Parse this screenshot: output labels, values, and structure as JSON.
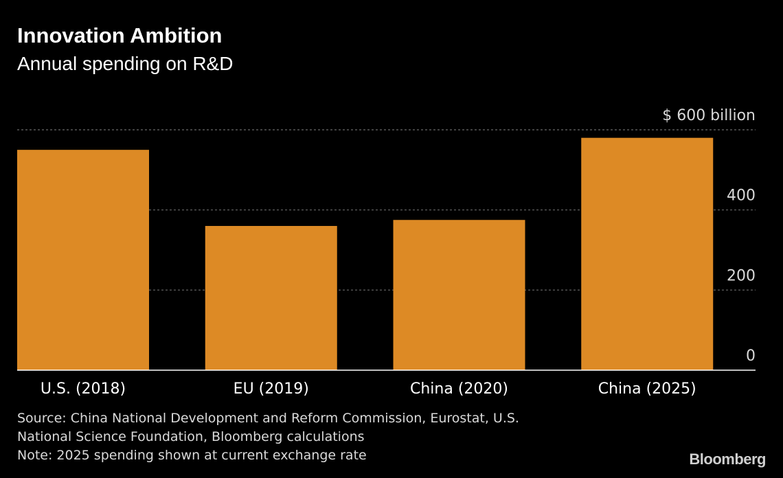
{
  "colors": {
    "background": "#000000",
    "bar": "#dd8a25",
    "grid": "#6a6a6a",
    "axis": "#ffffff",
    "text": "#ffffff",
    "muted_text": "#d9d9d9"
  },
  "chart_data": {
    "type": "bar",
    "title": "Innovation Ambition",
    "subtitle": "Annual spending on R&D",
    "categories": [
      "U.S. (2018)",
      "EU (2019)",
      "China (2020)",
      "China (2025)"
    ],
    "values": [
      550,
      360,
      375,
      580
    ],
    "unit_label": "$ 600 billion",
    "yticks": [
      0,
      200,
      400,
      600
    ],
    "ytick_labels": [
      "0",
      "200",
      "400",
      "$ 600  billion"
    ],
    "ylim": [
      0,
      600
    ],
    "grid": true,
    "grid_style": "dotted",
    "axis_side": "right"
  },
  "footer": {
    "source_line1": "Source: China National Development and Reform Commission, Eurostat, U.S.",
    "source_line2": "National Science Foundation, Bloomberg calculations",
    "note": "Note: 2025 spending shown at current exchange rate"
  },
  "brand": {
    "logo_text": "Bloomberg"
  }
}
